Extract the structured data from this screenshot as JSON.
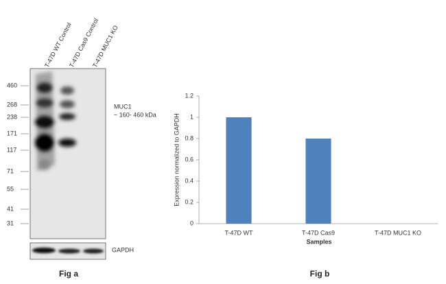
{
  "blot": {
    "lanes": [
      "T-47D WT Control",
      "T-47D Cas9 Control",
      "T-47D MUC1 KO"
    ],
    "markers": [
      460,
      268,
      238,
      171,
      117,
      71,
      55,
      41,
      31
    ],
    "target": "MUC1",
    "target_size": "~ 160- 460 kDa",
    "loading_control": "GAPDH",
    "caption": "Fig a"
  },
  "chart_data": {
    "type": "bar",
    "ylabel": "Expression  normalized to GAPDH",
    "xlabel": "Samples",
    "categories": [
      "T-47D WT",
      "T-47D Cas9",
      "T-47D MUC1 KO"
    ],
    "values": [
      1,
      0.8,
      0
    ],
    "color": "#4f81bd",
    "ylim": [
      0,
      1.2
    ],
    "yticks": [
      0,
      0.2,
      0.4,
      0.6,
      0.8,
      1,
      1.2
    ],
    "caption": "Fig b"
  }
}
